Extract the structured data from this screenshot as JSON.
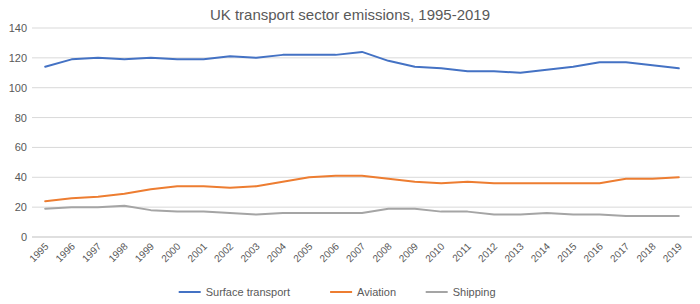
{
  "chart_data": {
    "type": "line",
    "title": "UK transport sector emissions, 1995-2019",
    "categories": [
      "1995",
      "1996",
      "1997",
      "1998",
      "1999",
      "2000",
      "2001",
      "2002",
      "2003",
      "2004",
      "2005",
      "2006",
      "2007",
      "2008",
      "2009",
      "2010",
      "2011",
      "2012",
      "2013",
      "2014",
      "2015",
      "2016",
      "2017",
      "2018",
      "2019"
    ],
    "series": [
      {
        "name": "Surface transport",
        "color": "#4472c4",
        "values": [
          114,
          119,
          120,
          119,
          120,
          119,
          119,
          121,
          120,
          122,
          122,
          122,
          124,
          118,
          114,
          113,
          111,
          111,
          110,
          112,
          114,
          117,
          117,
          115,
          113
        ]
      },
      {
        "name": "Aviation",
        "color": "#ed7d31",
        "values": [
          24,
          26,
          27,
          29,
          32,
          34,
          34,
          33,
          34,
          37,
          40,
          41,
          41,
          39,
          37,
          36,
          37,
          36,
          36,
          36,
          36,
          36,
          39,
          39,
          40
        ]
      },
      {
        "name": "Shipping",
        "color": "#a5a5a5",
        "values": [
          19,
          20,
          20,
          21,
          18,
          17,
          17,
          16,
          15,
          16,
          16,
          16,
          16,
          19,
          19,
          17,
          17,
          15,
          15,
          16,
          15,
          15,
          14,
          14,
          14
        ]
      }
    ],
    "ylim": [
      0,
      140
    ],
    "yticks": [
      0,
      20,
      40,
      60,
      80,
      100,
      120,
      140
    ],
    "grid": true,
    "legend": "bottom"
  }
}
